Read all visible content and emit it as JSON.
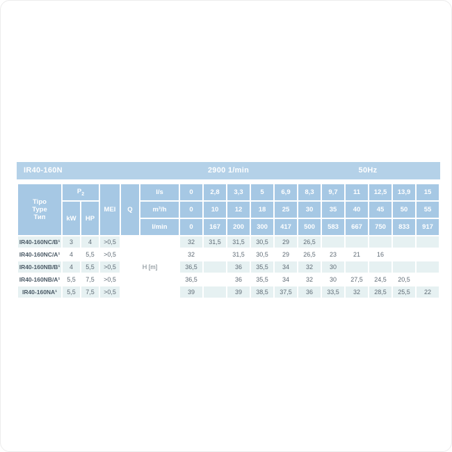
{
  "title_bar": {
    "model_series": "IR40-160N",
    "speed": "2900 1/min",
    "frequency": "50Hz"
  },
  "header": {
    "type_label_lines": [
      "Tipo",
      "Type",
      "Тип"
    ],
    "p2_label": "P",
    "p2_sub": "2",
    "kw_label": "kW",
    "hp_label": "HP",
    "mei_label": "MEI",
    "q_label": "Q",
    "flow_units": [
      "l/s",
      "m³/h",
      "l/min"
    ],
    "flow_values": {
      "ls": [
        "0",
        "2,8",
        "3,3",
        "5",
        "6,9",
        "8,3",
        "9,7",
        "11",
        "12,5",
        "13,9",
        "15"
      ],
      "m3h": [
        "0",
        "10",
        "12",
        "18",
        "25",
        "30",
        "35",
        "40",
        "45",
        "50",
        "55"
      ],
      "lmin": [
        "0",
        "167",
        "200",
        "300",
        "417",
        "500",
        "583",
        "667",
        "750",
        "833",
        "917"
      ]
    }
  },
  "body": {
    "head_label": "H [m]",
    "rows": [
      {
        "model": "IR40-160NC/B¹",
        "kw": "3",
        "hp": "4",
        "mei": ">0,5",
        "values": [
          "32",
          "31,5",
          "31,5",
          "30,5",
          "29",
          "26,5",
          "",
          "",
          "",
          "",
          ""
        ]
      },
      {
        "model": "IR40-160NC/A¹",
        "kw": "4",
        "hp": "5,5",
        "mei": ">0,5",
        "values": [
          "32",
          "",
          "31,5",
          "30,5",
          "29",
          "26,5",
          "23",
          "21",
          "16",
          "",
          ""
        ]
      },
      {
        "model": "IR40-160NB/B¹",
        "kw": "4",
        "hp": "5,5",
        "mei": ">0,5",
        "values": [
          "36,5",
          "",
          "36",
          "35,5",
          "34",
          "32",
          "30",
          "",
          "",
          "",
          ""
        ]
      },
      {
        "model": "IR40-160NB/A¹",
        "kw": "5,5",
        "hp": "7,5",
        "mei": ">0,5",
        "values": [
          "36,5",
          "",
          "36",
          "35,5",
          "34",
          "32",
          "30",
          "27,5",
          "24,5",
          "20,5",
          ""
        ]
      },
      {
        "model": "IR40-160NA¹",
        "kw": "5,5",
        "hp": "7,5",
        "mei": ">0,5",
        "values": [
          "39",
          "",
          "39",
          "38,5",
          "37,5",
          "36",
          "33,5",
          "32",
          "28,5",
          "25,5",
          "22"
        ]
      }
    ]
  },
  "colors": {
    "title_bar_bg": "#b4d1e8",
    "header_bg": "#a6c8e4",
    "row_alt_bg": "#e6f1f2",
    "row_bg": "#ffffff",
    "header_text": "#ffffff",
    "body_text": "#5f6b75",
    "model_text": "#4b5a66"
  }
}
